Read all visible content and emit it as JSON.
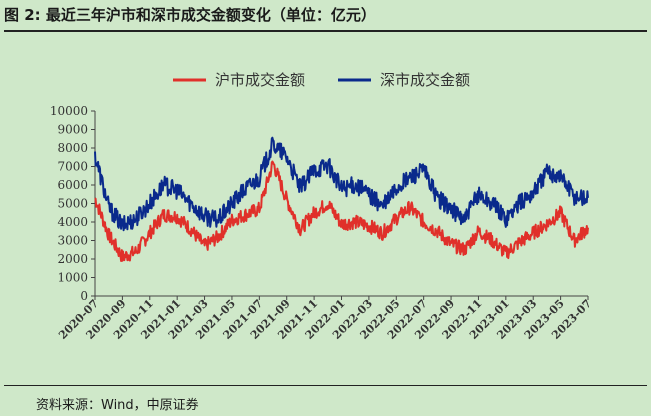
{
  "figure": {
    "title": "图 2:  最近三年沪市和深市成交金额变化（单位：亿元）",
    "source": "资料来源：Wind，中原证券"
  },
  "chart_data": {
    "type": "line",
    "title": "",
    "xlabel": "",
    "ylabel": "",
    "ylim": [
      0,
      10000
    ],
    "yticks": [
      "0",
      "1000",
      "2000",
      "3000",
      "4000",
      "5000",
      "6000",
      "7000",
      "8000",
      "9000",
      "10000"
    ],
    "xticks": [
      "2020-07",
      "2020-09",
      "2020-11",
      "2021-01",
      "2021-03",
      "2021-05",
      "2021-07",
      "2021-09",
      "2021-11",
      "2022-01",
      "2022-03",
      "2022-05",
      "2022-07",
      "2022-09",
      "2022-11",
      "2023-01",
      "2023-03",
      "2023-05",
      "2023-07"
    ],
    "grid": false,
    "legend_position": "top-center",
    "x": [
      "2020-07",
      "2020-08",
      "2020-09",
      "2020-10",
      "2020-11",
      "2020-12",
      "2021-01",
      "2021-02",
      "2021-03",
      "2021-04",
      "2021-05",
      "2021-06",
      "2021-07",
      "2021-08",
      "2021-09",
      "2021-10",
      "2021-11",
      "2021-12",
      "2022-01",
      "2022-02",
      "2022-03",
      "2022-04",
      "2022-05",
      "2022-06",
      "2022-07",
      "2022-08",
      "2022-09",
      "2022-10",
      "2022-11",
      "2022-12",
      "2023-01",
      "2023-02",
      "2023-03",
      "2023-04",
      "2023-05",
      "2023-06",
      "2023-07"
    ],
    "series": [
      {
        "name": "沪市成交金额",
        "color": "#e0302a",
        "values": [
          5300,
          3300,
          2100,
          2400,
          3400,
          4400,
          4300,
          3600,
          2700,
          3200,
          4100,
          4400,
          4700,
          7200,
          5200,
          3600,
          4500,
          5000,
          3900,
          4000,
          3800,
          3400,
          4200,
          4800,
          4000,
          3500,
          2800,
          2500,
          3500,
          3000,
          2300,
          2900,
          3400,
          3900,
          4500,
          3000,
          3700
        ]
      },
      {
        "name": "深市成交金额",
        "color": "#0a2a8c",
        "values": [
          7600,
          4800,
          3800,
          4200,
          5000,
          6000,
          5700,
          5000,
          4300,
          4100,
          5000,
          5800,
          6400,
          8200,
          7500,
          5800,
          6800,
          7100,
          5800,
          6000,
          5500,
          4800,
          5800,
          6400,
          6800,
          5300,
          4700,
          4100,
          5500,
          5000,
          4200,
          5000,
          5600,
          6700,
          6500,
          5400,
          5300
        ]
      }
    ]
  }
}
